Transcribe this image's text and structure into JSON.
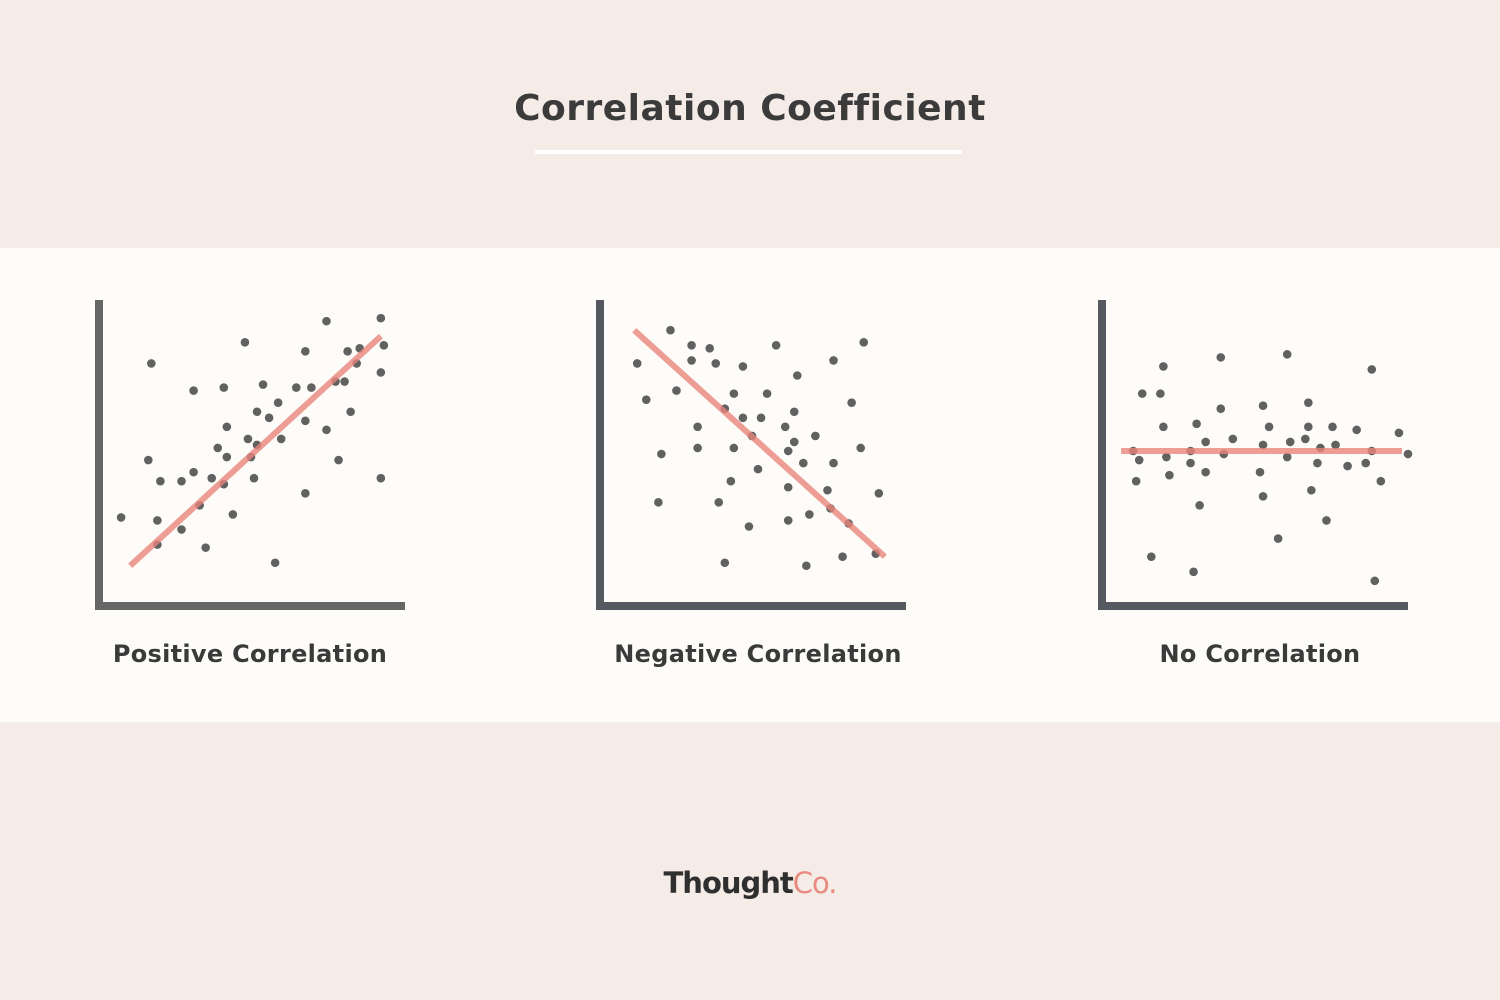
{
  "header": {
    "title": "Correlation Coefficient"
  },
  "logo": {
    "part1": "Thought",
    "part2": "Co."
  },
  "colors": {
    "dot": "#616161",
    "trend_line": "#e8857b",
    "axis_positive": "#666666",
    "axis_other": "#555a61",
    "background": "#f5ece7",
    "panel": "#fdfcf8"
  },
  "chart_data": [
    {
      "type": "scatter",
      "title": "Positive Correlation",
      "xlim": [
        0,
        100
      ],
      "ylim": [
        0,
        100
      ],
      "grid": false,
      "points": [
        [
          6,
          28
        ],
        [
          16,
          79
        ],
        [
          15,
          47
        ],
        [
          19,
          40
        ],
        [
          18,
          27
        ],
        [
          18,
          19
        ],
        [
          26,
          24
        ],
        [
          26,
          40
        ],
        [
          30,
          43
        ],
        [
          30,
          70
        ],
        [
          32,
          32
        ],
        [
          34,
          18
        ],
        [
          36,
          41
        ],
        [
          38,
          51
        ],
        [
          40,
          71
        ],
        [
          41,
          58
        ],
        [
          41,
          48
        ],
        [
          40,
          39
        ],
        [
          43,
          29
        ],
        [
          47,
          86
        ],
        [
          48,
          54
        ],
        [
          51,
          52
        ],
        [
          51,
          63
        ],
        [
          49,
          48
        ],
        [
          50,
          41
        ],
        [
          53,
          72
        ],
        [
          55,
          61
        ],
        [
          58,
          66
        ],
        [
          59,
          54
        ],
        [
          57,
          13
        ],
        [
          64,
          71
        ],
        [
          67,
          36
        ],
        [
          67,
          60
        ],
        [
          67,
          83
        ],
        [
          69,
          71
        ],
        [
          74,
          93
        ],
        [
          74,
          57
        ],
        [
          77,
          73
        ],
        [
          78,
          47
        ],
        [
          80,
          73
        ],
        [
          81,
          83
        ],
        [
          82,
          63
        ],
        [
          84,
          79
        ],
        [
          85,
          84
        ],
        [
          92,
          94
        ],
        [
          93,
          85
        ],
        [
          92,
          76
        ],
        [
          92,
          41
        ]
      ],
      "trend_line": [
        [
          9,
          12
        ],
        [
          92,
          88
        ]
      ]
    },
    {
      "type": "scatter",
      "title": "Negative Correlation",
      "xlim": [
        0,
        100
      ],
      "ylim": [
        0,
        100
      ],
      "grid": false,
      "points": [
        [
          22,
          90
        ],
        [
          11,
          79
        ],
        [
          29,
          85
        ],
        [
          35,
          84
        ],
        [
          29,
          80
        ],
        [
          37,
          79
        ],
        [
          46,
          78
        ],
        [
          57,
          85
        ],
        [
          86,
          86
        ],
        [
          76,
          80
        ],
        [
          64,
          75
        ],
        [
          14,
          67
        ],
        [
          24,
          70
        ],
        [
          43,
          69
        ],
        [
          54,
          69
        ],
        [
          82,
          66
        ],
        [
          40,
          64
        ],
        [
          46,
          61
        ],
        [
          52,
          61
        ],
        [
          63,
          63
        ],
        [
          60,
          58
        ],
        [
          31,
          58
        ],
        [
          49,
          55
        ],
        [
          70,
          55
        ],
        [
          63,
          53
        ],
        [
          19,
          49
        ],
        [
          31,
          51
        ],
        [
          43,
          51
        ],
        [
          61,
          50
        ],
        [
          85,
          51
        ],
        [
          66,
          46
        ],
        [
          76,
          46
        ],
        [
          51,
          44
        ],
        [
          42,
          40
        ],
        [
          61,
          38
        ],
        [
          74,
          37
        ],
        [
          91,
          36
        ],
        [
          18,
          33
        ],
        [
          38,
          33
        ],
        [
          75,
          31
        ],
        [
          68,
          29
        ],
        [
          61,
          27
        ],
        [
          48,
          25
        ],
        [
          81,
          26
        ],
        [
          79,
          15
        ],
        [
          67,
          12
        ],
        [
          40,
          13
        ],
        [
          90,
          16
        ]
      ],
      "trend_line": [
        [
          10,
          90
        ],
        [
          93,
          15
        ]
      ]
    },
    {
      "type": "scatter",
      "title": "No Correlation",
      "xlim": [
        0,
        100
      ],
      "ylim": [
        0,
        100
      ],
      "grid": false,
      "points": [
        [
          19,
          78
        ],
        [
          12,
          69
        ],
        [
          18,
          69
        ],
        [
          38,
          81
        ],
        [
          60,
          82
        ],
        [
          88,
          77
        ],
        [
          38,
          64
        ],
        [
          52,
          65
        ],
        [
          67,
          66
        ],
        [
          19,
          58
        ],
        [
          30,
          59
        ],
        [
          54,
          58
        ],
        [
          67,
          58
        ],
        [
          75,
          58
        ],
        [
          83,
          57
        ],
        [
          97,
          56
        ],
        [
          33,
          53
        ],
        [
          42,
          54
        ],
        [
          52,
          52
        ],
        [
          61,
          53
        ],
        [
          66,
          54
        ],
        [
          76,
          52
        ],
        [
          9,
          50
        ],
        [
          28,
          50
        ],
        [
          39,
          49
        ],
        [
          71,
          51
        ],
        [
          88,
          50
        ],
        [
          100,
          49
        ],
        [
          11,
          47
        ],
        [
          20,
          48
        ],
        [
          28,
          46
        ],
        [
          60,
          48
        ],
        [
          70,
          46
        ],
        [
          80,
          45
        ],
        [
          86,
          46
        ],
        [
          10,
          40
        ],
        [
          21,
          42
        ],
        [
          33,
          43
        ],
        [
          51,
          43
        ],
        [
          91,
          40
        ],
        [
          68,
          37
        ],
        [
          52,
          35
        ],
        [
          31,
          32
        ],
        [
          73,
          27
        ],
        [
          57,
          21
        ],
        [
          15,
          15
        ],
        [
          29,
          10
        ],
        [
          89,
          7
        ]
      ],
      "trend_line": [
        [
          5,
          50
        ],
        [
          98,
          50
        ]
      ]
    }
  ]
}
